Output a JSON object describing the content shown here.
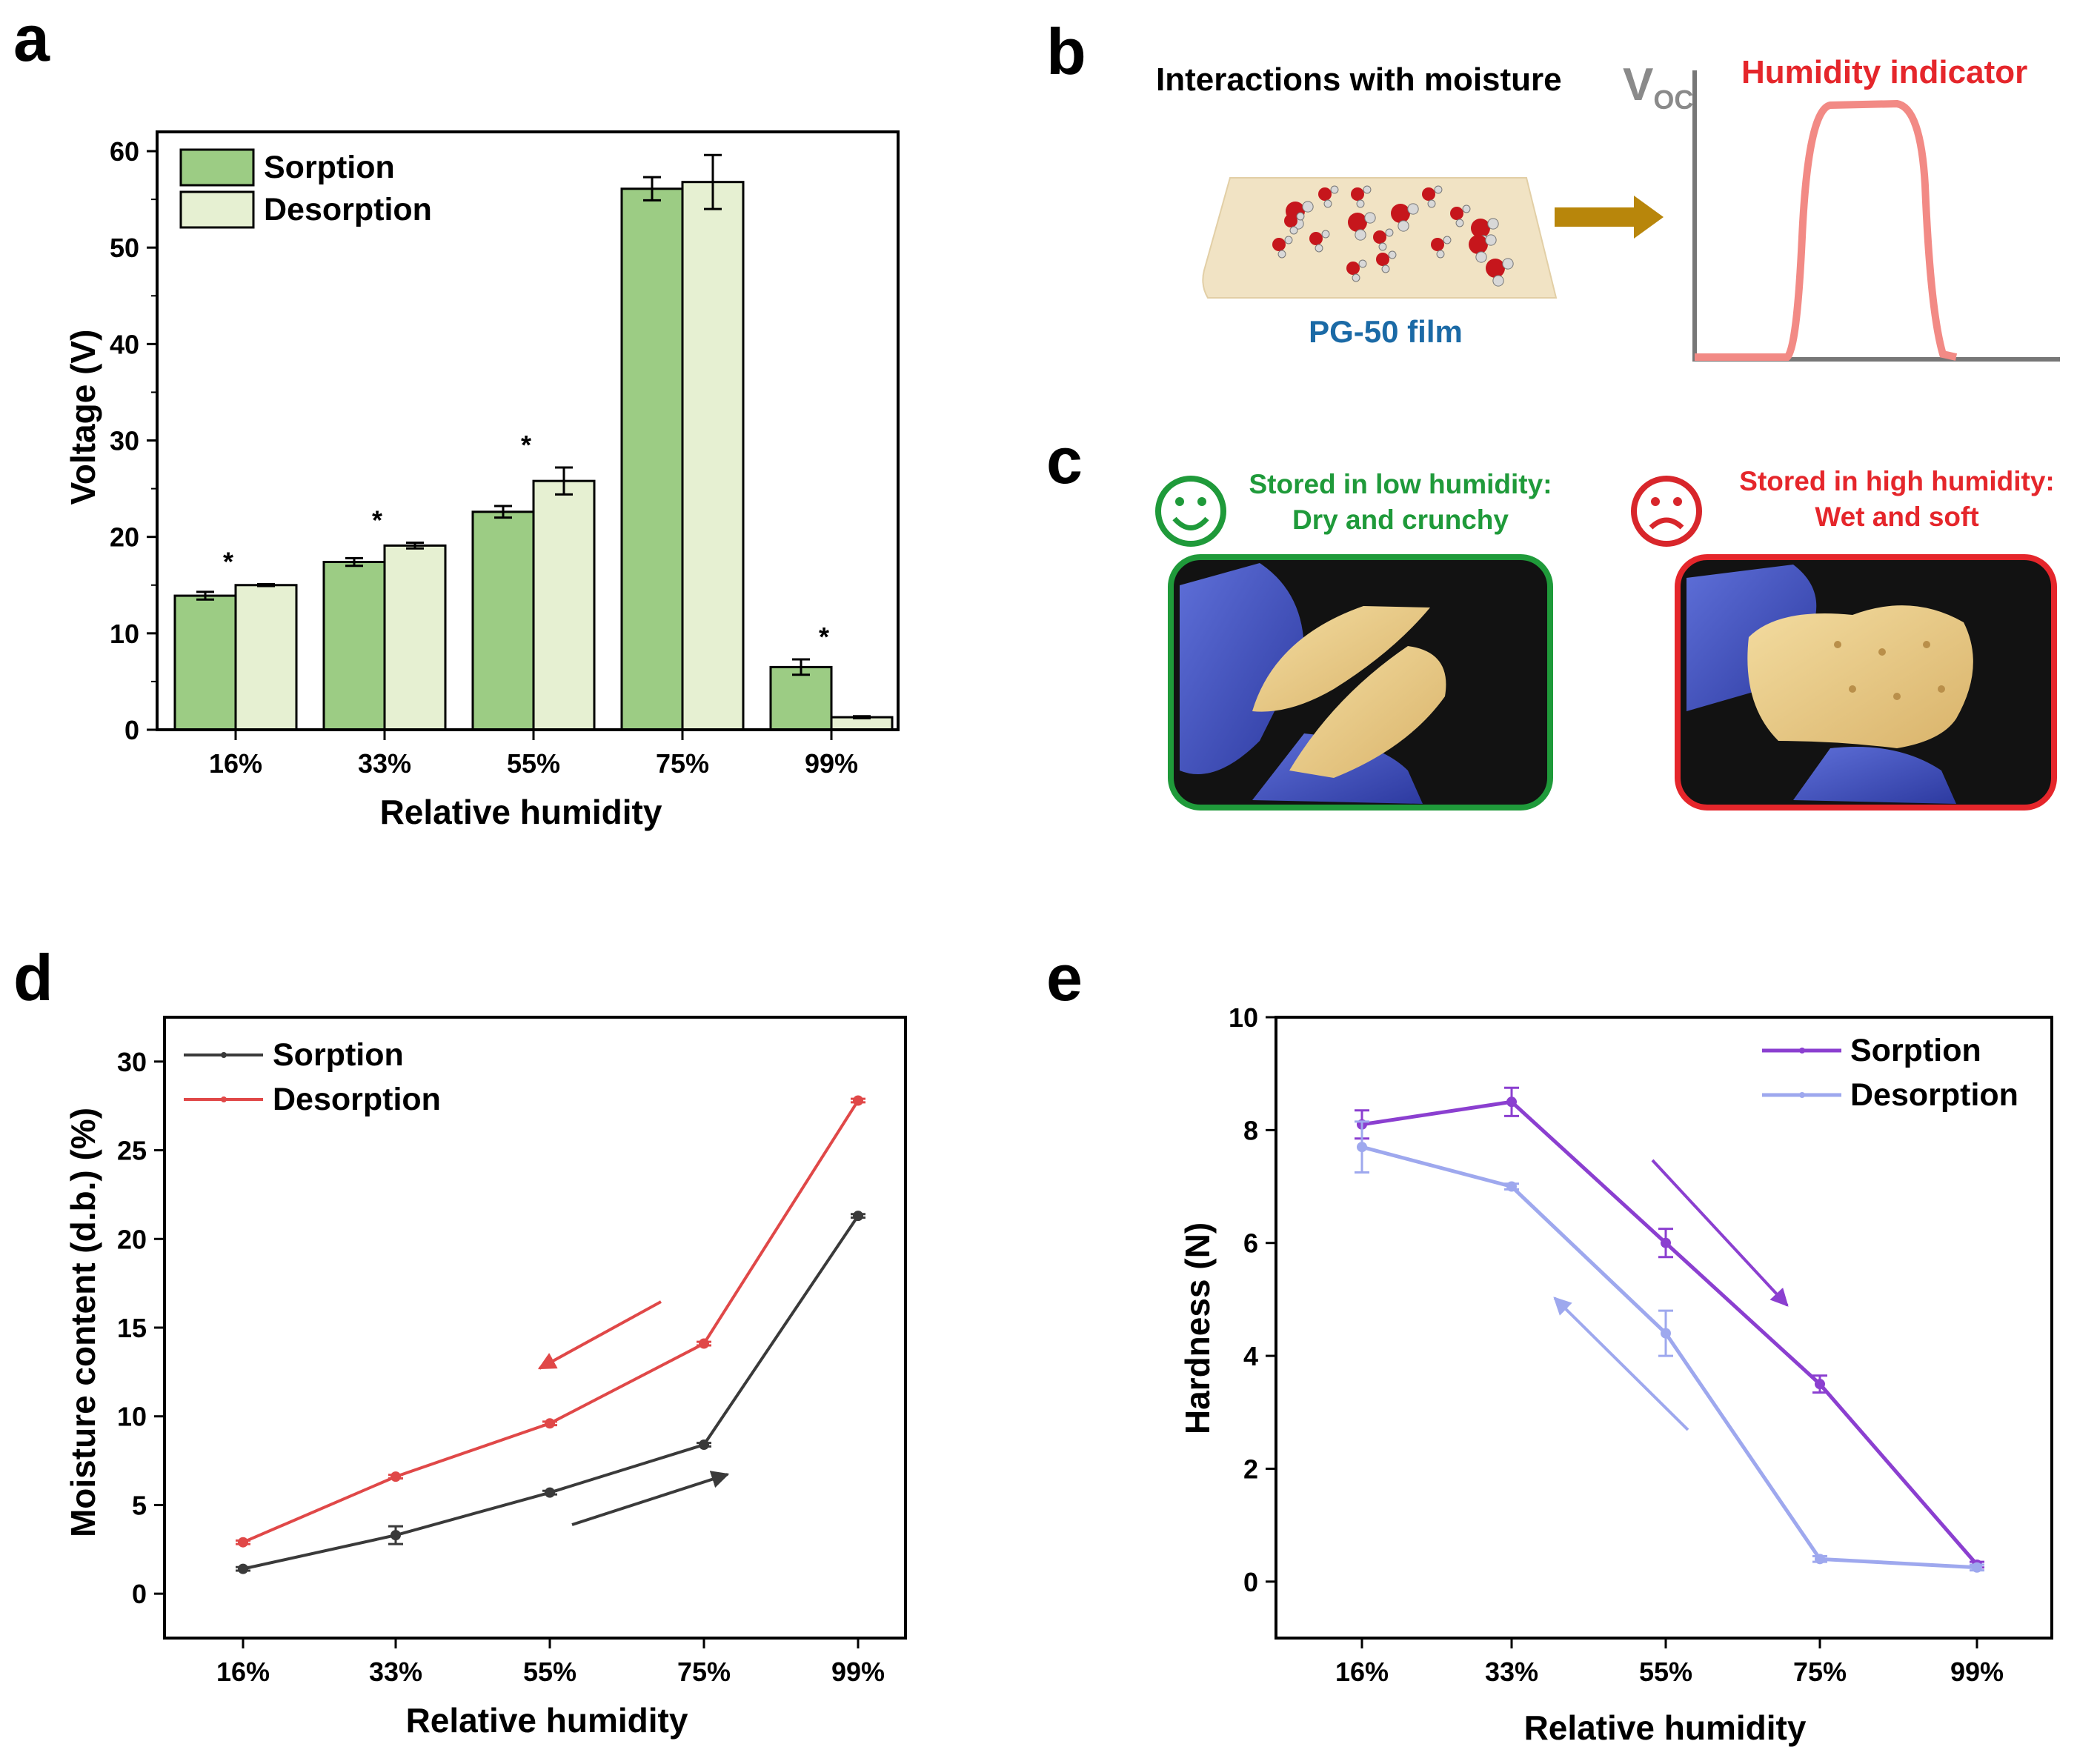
{
  "panel_labels": {
    "a": "a",
    "b": "b",
    "c": "c",
    "d": "d",
    "e": "e"
  },
  "colors": {
    "sorption_bar": "#9ccc84",
    "desorption_bar": "#e6f0d2",
    "sorption_d": "#3a3a3a",
    "desorption_d": "#e04848",
    "sorption_e": "#8b3fd0",
    "desorption_e": "#9ea8ee"
  },
  "panel_b": {
    "title": "Interactions with moisture",
    "film_label": "PG-50 film",
    "indicator_label": "Humidity indicator",
    "voc_symbol": "V",
    "voc_subscript": "OC",
    "film_icon": "water-molecules-film-icon",
    "arrow_icon": "right-arrow-icon",
    "plot_icon": "voltage-pulse-plot-icon"
  },
  "panel_c": {
    "low_caption_line1": "Stored in low humidity:",
    "low_caption_line2": "Dry and crunchy",
    "high_caption_line1": "Stored in high humidity:",
    "high_caption_line2": "Wet and soft",
    "happy_icon": "happy-face-icon",
    "sad_icon": "sad-face-icon",
    "low_photo": "crunchy-cracker-photo",
    "high_photo": "soft-cracker-photo"
  },
  "chart_data": [
    {
      "id": "a",
      "type": "bar",
      "title": "",
      "xlabel": "Relative humidity",
      "ylabel": "Voltage (V)",
      "categories": [
        "16%",
        "33%",
        "55%",
        "75%",
        "99%"
      ],
      "ylim": [
        0,
        62
      ],
      "yticks": [
        "0",
        "10",
        "20",
        "30",
        "40",
        "50",
        "60"
      ],
      "legend_position": "top-left",
      "significance_marker": "*",
      "significant": [
        true,
        true,
        true,
        false,
        true
      ],
      "series": [
        {
          "name": "Sorption",
          "values": [
            13.9,
            17.4,
            22.6,
            56.1,
            6.5
          ],
          "errors": [
            0.4,
            0.4,
            0.6,
            1.2,
            0.8
          ]
        },
        {
          "name": "Desorption",
          "values": [
            15.0,
            19.1,
            25.8,
            56.8,
            1.3
          ],
          "errors": [
            0.1,
            0.3,
            1.4,
            2.8,
            0.1
          ]
        }
      ]
    },
    {
      "id": "d",
      "type": "line",
      "title": "",
      "xlabel": "Relative humidity",
      "ylabel": "Moisture content (d.b.) (%)",
      "categories": [
        "16%",
        "33%",
        "55%",
        "75%",
        "99%"
      ],
      "ylim": [
        -2.5,
        32.5
      ],
      "yticks": [
        "0",
        "5",
        "10",
        "15",
        "20",
        "25",
        "30"
      ],
      "legend_position": "top-left",
      "series": [
        {
          "name": "Sorption",
          "values": [
            1.4,
            3.3,
            5.7,
            8.4,
            21.3
          ],
          "errors": [
            0.1,
            0.5,
            0.1,
            0.1,
            0.1
          ]
        },
        {
          "name": "Desorption",
          "values": [
            2.9,
            6.6,
            9.6,
            14.1,
            27.8
          ],
          "errors": [
            0.1,
            0.1,
            0.1,
            0.1,
            0.1
          ]
        }
      ]
    },
    {
      "id": "e",
      "type": "line",
      "title": "",
      "xlabel": "Relative humidity",
      "ylabel": "Hardness (N)",
      "categories": [
        "16%",
        "33%",
        "55%",
        "75%",
        "99%"
      ],
      "ylim": [
        -1,
        10
      ],
      "yticks": [
        "0",
        "2",
        "4",
        "6",
        "8",
        "10"
      ],
      "legend_position": "top-right",
      "series": [
        {
          "name": "Sorption",
          "values": [
            8.1,
            8.5,
            6.0,
            3.5,
            0.3
          ],
          "errors": [
            0.25,
            0.25,
            0.25,
            0.15,
            0.05
          ]
        },
        {
          "name": "Desorption",
          "values": [
            7.7,
            7.0,
            4.4,
            0.4,
            0.25
          ],
          "errors": [
            0.45,
            0.05,
            0.4,
            0.05,
            0.05
          ]
        }
      ]
    }
  ]
}
